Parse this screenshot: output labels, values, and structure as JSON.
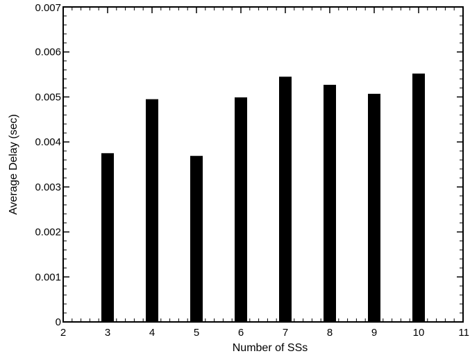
{
  "chart_data": {
    "type": "bar",
    "title": "",
    "xlabel": "Number of SSs",
    "ylabel": "Average Delay (sec)",
    "x": [
      3,
      4,
      5,
      6,
      7,
      8,
      9,
      10
    ],
    "values": [
      0.00375,
      0.00495,
      0.00369,
      0.00499,
      0.00545,
      0.00527,
      0.00507,
      0.00552
    ],
    "xlim": [
      2,
      11
    ],
    "ylim": [
      0,
      0.007
    ],
    "xticks": [
      2,
      3,
      4,
      5,
      6,
      7,
      8,
      9,
      10,
      11
    ],
    "xtick_labels": [
      "2",
      "3",
      "4",
      "5",
      "6",
      "7",
      "8",
      "9",
      "10",
      "11"
    ],
    "yticks": [
      0,
      0.001,
      0.002,
      0.003,
      0.004,
      0.005,
      0.006,
      0.007
    ],
    "ytick_labels": [
      "0",
      "0.001",
      "0.002",
      "0.003",
      "0.004",
      "0.005",
      "0.006",
      "0.007"
    ],
    "grid": false,
    "legend": "none",
    "bar_color": "#000000"
  }
}
